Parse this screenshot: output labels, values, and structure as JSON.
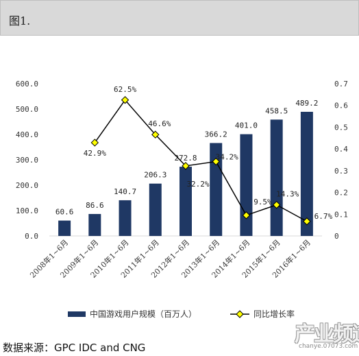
{
  "header": {
    "title": "图1."
  },
  "source": "数据来源：GPC IDC and CNG",
  "watermark": {
    "main": "产业频道",
    "sub": "chanye.07073.com"
  },
  "chart_data": {
    "type": "bar",
    "categories": [
      "2008年1~6月",
      "2009年1~6月",
      "2010年1~6月",
      "2011年1~6月",
      "2012年1~6月",
      "2013年1~6月",
      "2014年1~6月",
      "2015年1~6月",
      "2016年1~6月"
    ],
    "series": [
      {
        "name": "中国游戏用户规模（百万人）",
        "type": "bar",
        "axis": "left",
        "color": "#1f3864",
        "values": [
          60.6,
          86.6,
          140.7,
          206.3,
          272.8,
          366.2,
          401.0,
          458.5,
          489.2
        ],
        "labels": [
          "60.6",
          "86.6",
          "140.7",
          "206.3",
          "272.8",
          "366.2",
          "401.0",
          "458.5",
          "489.2"
        ]
      },
      {
        "name": "同比增长率",
        "type": "line",
        "axis": "right",
        "color": "#000000",
        "marker_color": "#ffff00",
        "values": [
          null,
          0.429,
          0.625,
          0.466,
          0.322,
          0.342,
          0.095,
          0.143,
          0.067
        ],
        "labels": [
          "",
          "42.9%",
          "62.5%",
          "46.6%",
          "32.2%",
          "34.2%",
          "9.5%",
          "14.3%",
          "6.7%"
        ]
      }
    ],
    "ylim": [
      0,
      600
    ],
    "y_ticks": [
      "0.0",
      "100.0",
      "200.0",
      "300.0",
      "400.0",
      "500.0",
      "600.0"
    ],
    "y2lim": [
      0,
      0.7
    ],
    "y2_ticks": [
      "0",
      "0.1",
      "0.2",
      "0.3",
      "0.4",
      "0.5",
      "0.6",
      "0.7"
    ],
    "grid": false,
    "legend_position": "bottom"
  }
}
